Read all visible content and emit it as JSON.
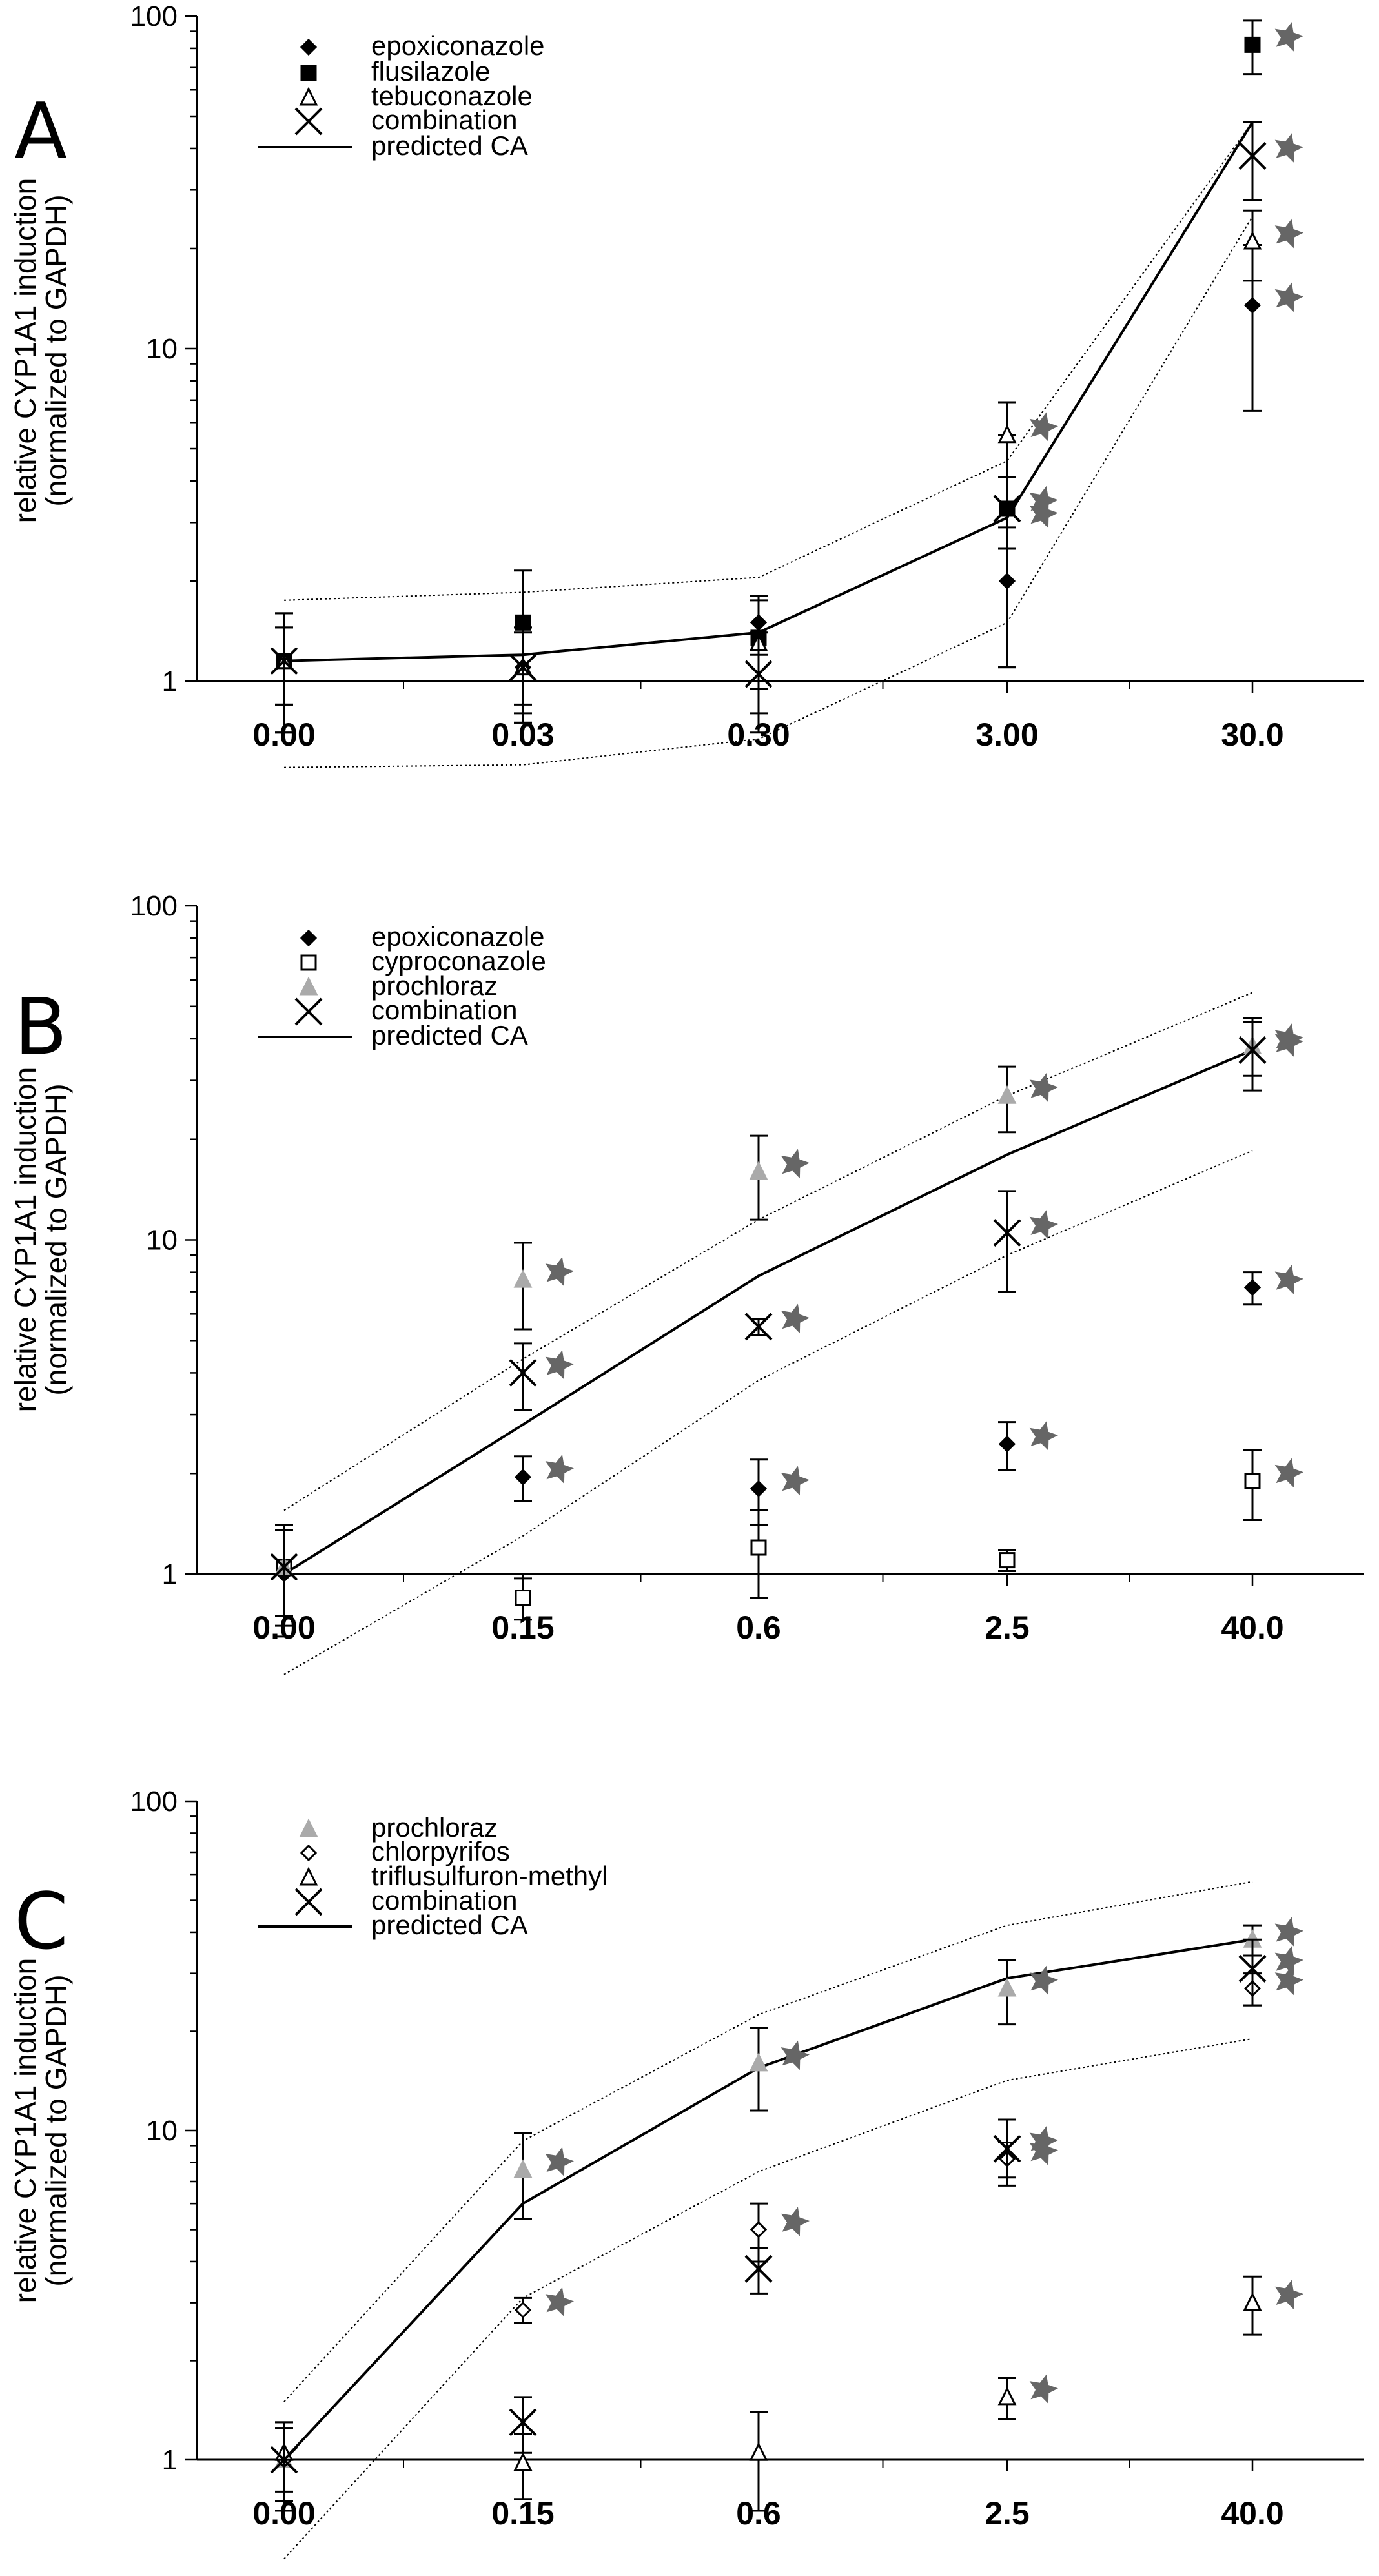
{
  "figure": {
    "star_color": "#666666",
    "gray_marker_color": "#aaaaaa"
  },
  "chart_data": [
    {
      "type": "scatter",
      "panel": "A",
      "ylabel": "relative CYP1A1 induction",
      "ylabel2": "(normalized to GAPDH)",
      "yscale": "log",
      "ylim": [
        1,
        100
      ],
      "yticks": [
        "1",
        "10",
        "100"
      ],
      "categories": [
        "0.00",
        "0.03",
        "0.30",
        "3.00",
        "30.0"
      ],
      "legend": [
        "epoxiconazole",
        "flusilazole",
        "tebuconazole",
        "combination",
        "predicted CA"
      ],
      "series": [
        {
          "name": "epoxiconazole",
          "marker": "diamond",
          "color": "#000000",
          "values": [
            1.15,
            1.1,
            1.5,
            2.0,
            13.5
          ],
          "err": [
            0.45,
            0.35,
            0.3,
            0.9,
            7.0
          ],
          "stars": [
            false,
            false,
            false,
            false,
            true
          ]
        },
        {
          "name": "flusilazole",
          "marker": "square",
          "color": "#000000",
          "values": [
            1.15,
            1.5,
            1.35,
            3.3,
            82
          ],
          "err": [
            0.3,
            0.65,
            0.4,
            2.2,
            15
          ],
          "stars": [
            false,
            false,
            false,
            false,
            true
          ]
        },
        {
          "name": "tebuconazole",
          "marker": "triangle-open",
          "color": "#000000",
          "values": [
            1.15,
            1.1,
            1.3,
            5.5,
            21
          ],
          "err": [
            0.3,
            0.3,
            0.5,
            1.4,
            5
          ],
          "stars": [
            false,
            false,
            false,
            true,
            true
          ]
        },
        {
          "name": "combination",
          "marker": "x",
          "color": "#000000",
          "values": [
            1.15,
            1.1,
            1.05,
            3.3,
            38
          ],
          "err": [
            0.45,
            0.35,
            0.35,
            0.8,
            10
          ],
          "stars": [
            false,
            false,
            false,
            true,
            true
          ]
        }
      ],
      "extra_stars": [
        {
          "x": 3,
          "y": 3.3
        }
      ],
      "predicted_ca": [
        1.15,
        1.2,
        1.4,
        3.1,
        48
      ],
      "ci_upper": [
        1.75,
        1.85,
        2.05,
        4.6,
        48
      ],
      "ci_lower": [
        0.55,
        0.56,
        0.67,
        1.5,
        25
      ]
    },
    {
      "type": "scatter",
      "panel": "B",
      "ylabel": "relative CYP1A1 induction",
      "ylabel2": "(normalized to GAPDH)",
      "yscale": "log",
      "ylim": [
        1,
        100
      ],
      "yticks": [
        "1",
        "10",
        "100"
      ],
      "categories": [
        "0.00",
        "0.15",
        "0.6",
        "2.5",
        "40.0"
      ],
      "legend": [
        "epoxiconazole",
        "cyproconazole",
        "prochloraz",
        "combination",
        "predicted CA"
      ],
      "series": [
        {
          "name": "epoxiconazole",
          "marker": "diamond",
          "color": "#000000",
          "values": [
            1.0,
            1.95,
            1.8,
            2.45,
            7.2
          ],
          "err": [
            0.35,
            0.3,
            0.4,
            0.4,
            0.8
          ],
          "stars": [
            false,
            true,
            true,
            true,
            true
          ]
        },
        {
          "name": "cyproconazole",
          "marker": "square-open",
          "color": "#000000",
          "values": [
            1.05,
            0.85,
            1.2,
            1.1,
            1.9
          ],
          "err": [
            0.3,
            0.12,
            0.35,
            0.08,
            0.45
          ],
          "stars": [
            false,
            false,
            false,
            false,
            true
          ]
        },
        {
          "name": "prochloraz",
          "marker": "triangle",
          "color": "#aaaaaa",
          "values": [
            1.05,
            7.6,
            16,
            27,
            38
          ],
          "err": [
            0.3,
            2.2,
            4.5,
            6,
            7
          ],
          "stars": [
            false,
            true,
            true,
            true,
            true
          ]
        },
        {
          "name": "combination",
          "marker": "x",
          "color": "#000000",
          "values": [
            1.05,
            4.0,
            5.5,
            10.5,
            37
          ],
          "err": [
            0.35,
            0.9,
            0.3,
            3.5,
            9
          ],
          "stars": [
            false,
            true,
            true,
            true,
            true
          ]
        }
      ],
      "predicted_ca": [
        1.0,
        2.8,
        7.8,
        18,
        37
      ],
      "ci_upper": [
        1.55,
        4.4,
        11.5,
        27,
        55
      ],
      "ci_lower": [
        0.5,
        1.3,
        3.8,
        9,
        18.5
      ]
    },
    {
      "type": "scatter",
      "panel": "C",
      "ylabel": "relative CYP1A1 induction",
      "ylabel2": "(normalized to GAPDH)",
      "yscale": "log",
      "ylim": [
        1,
        100
      ],
      "yticks": [
        "1",
        "10",
        "100"
      ],
      "categories": [
        "0.00",
        "0.15",
        "0.6",
        "2.5",
        "40.0"
      ],
      "legend": [
        "prochloraz",
        "chlorpyrifos",
        "triflusulfuron-methyl",
        "combination",
        "predicted CA"
      ],
      "series": [
        {
          "name": "prochloraz",
          "marker": "triangle",
          "color": "#aaaaaa",
          "values": [
            1.0,
            7.6,
            16,
            27,
            38
          ],
          "err": [
            0.3,
            2.2,
            4.5,
            6,
            4
          ],
          "stars": [
            false,
            true,
            true,
            true,
            true
          ]
        },
        {
          "name": "chlorpyrifos",
          "marker": "diamond-open",
          "color": "#000000",
          "values": [
            1.0,
            2.85,
            5.0,
            8.2,
            27
          ],
          "err": [
            0.25,
            0.25,
            1.0,
            1.0,
            3
          ],
          "stars": [
            false,
            true,
            true,
            true,
            true
          ]
        },
        {
          "name": "triflusulfuron-methyl",
          "marker": "triangle-open",
          "color": "#000000",
          "values": [
            1.05,
            0.98,
            1.05,
            1.55,
            3.0
          ],
          "err": [
            0.25,
            0.22,
            0.35,
            0.22,
            0.6
          ],
          "stars": [
            false,
            false,
            false,
            true,
            true
          ]
        },
        {
          "name": "combination",
          "marker": "x",
          "color": "#000000",
          "values": [
            1.0,
            1.3,
            3.8,
            8.8,
            31
          ],
          "err": [
            0.25,
            0.25,
            0.6,
            2.0,
            7
          ],
          "stars": [
            false,
            false,
            false,
            true,
            true
          ]
        }
      ],
      "predicted_ca": [
        1.0,
        6.0,
        15.5,
        29,
        38
      ],
      "ci_upper": [
        1.5,
        9.3,
        22.5,
        42,
        57
      ],
      "ci_lower": [
        0.5,
        3.1,
        7.5,
        14.2,
        19
      ]
    }
  ]
}
